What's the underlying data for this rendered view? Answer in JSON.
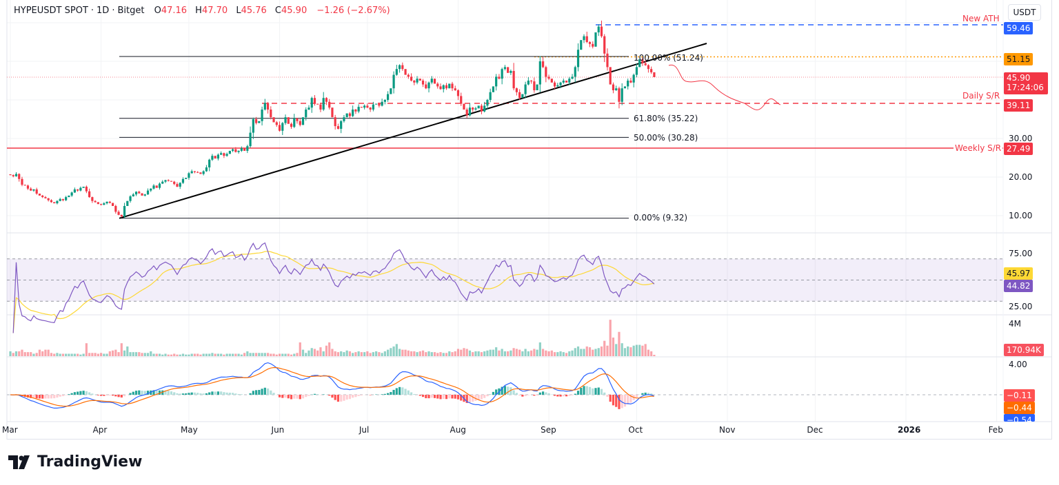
{
  "header": {
    "symbol": "HYPEUSDT SPOT",
    "sep": "·",
    "interval": "1D",
    "exchange": "Bitget",
    "o_label": "O",
    "open": "47.16",
    "h_label": "H",
    "high": "47.70",
    "l_label": "L",
    "low": "45.76",
    "c_label": "C",
    "close": "45.90",
    "change": "−1.26 (−2.67%)"
  },
  "currency": "USDT",
  "colors": {
    "up": "#089981",
    "down": "#f23645",
    "ath": "#2962ff",
    "fib100": "#ff9800",
    "rsi": "#7e57c2",
    "rsi_ma": "#fdd835",
    "macd": "#2962ff",
    "signal": "#ff6d00"
  },
  "price_axis": {
    "ticks": [
      "30.00",
      "20.00",
      "10.00"
    ],
    "labels": {
      "ath": "59.46",
      "fib100": "51.15",
      "last": "45.90",
      "countdown": "17:24:06",
      "daily_sr": "39.11",
      "weekly_sr": "27.49"
    }
  },
  "annotations": {
    "ath": "New ATH",
    "daily_sr": "Daily S/R",
    "weekly_sr": "Weekly S/R",
    "fib": [
      {
        "label": "100.00% (51.24)",
        "value": 51.24
      },
      {
        "label": "61.80% (35.22)",
        "value": 35.22
      },
      {
        "label": "50.00% (30.28)",
        "value": 30.28
      },
      {
        "label": "0.00% (9.32)",
        "value": 9.32
      }
    ]
  },
  "rsi_axis": {
    "ticks": [
      "75.00",
      "25.00"
    ],
    "ma_label": "45.97",
    "rsi_label": "44.82"
  },
  "volume_axis": {
    "tick": "4M",
    "label": "170.94K"
  },
  "macd_axis": {
    "tick": "4.00",
    "hist_label": "−0.11",
    "signal_label": "−0.44",
    "macd_label": "−0.54"
  },
  "time_axis": [
    "Mar",
    "Apr",
    "May",
    "Jun",
    "Jul",
    "Aug",
    "Sep",
    "Oct",
    "Nov",
    "Dec",
    "2026",
    "Feb"
  ],
  "brand": "TradingView",
  "chart_data": {
    "type": "candlestick",
    "start": "2025-03-01",
    "interval": "1D",
    "ylim": [
      0,
      62
    ],
    "levels": {
      "ath": 59.46,
      "fib100_marker": 51.15,
      "last": 45.9,
      "daily_sr": 39.11,
      "weekly_sr": 27.49
    },
    "close": [
      20.5,
      20.2,
      20.8,
      19.5,
      18.0,
      17.8,
      17.0,
      16.5,
      16.8,
      15.7,
      15.2,
      14.8,
      14.5,
      14.0,
      13.5,
      13.2,
      13.8,
      14.3,
      14.0,
      14.8,
      15.2,
      16.0,
      16.8,
      16.5,
      17.2,
      17.5,
      16.3,
      14.8,
      13.8,
      13.5,
      13.0,
      12.8,
      13.2,
      13.6,
      13.3,
      12.5,
      11.0,
      10.2,
      9.8,
      12.5,
      13.8,
      15.0,
      15.5,
      16.2,
      15.8,
      15.2,
      15.5,
      16.5,
      17.0,
      17.8,
      17.2,
      18.3,
      18.8,
      19.2,
      19.0,
      18.8,
      18.2,
      17.5,
      18.5,
      19.5,
      19.8,
      21.0,
      21.5,
      21.3,
      21.2,
      20.8,
      21.5,
      22.5,
      24.5,
      25.5,
      24.8,
      25.8,
      26.2,
      25.5,
      26.0,
      26.8,
      27.2,
      26.5,
      26.8,
      27.5,
      26.8,
      28.0,
      31.5,
      35.0,
      34.0,
      34.5,
      37.5,
      39.2,
      37.5,
      35.5,
      34.2,
      33.5,
      32.0,
      34.0,
      35.5,
      33.8,
      33.0,
      35.2,
      34.5,
      33.5,
      35.5,
      37.5,
      38.0,
      40.5,
      39.0,
      38.8,
      37.5,
      40.5,
      39.5,
      38.0,
      35.5,
      33.2,
      32.5,
      34.5,
      35.5,
      36.5,
      35.8,
      37.5,
      37.0,
      38.2,
      38.0,
      38.5,
      38.0,
      37.5,
      38.8,
      39.0,
      38.5,
      39.5,
      40.0,
      41.5,
      43.0,
      46.5,
      48.0,
      49.0,
      48.0,
      46.5,
      46.0,
      45.0,
      44.5,
      45.5,
      45.0,
      44.0,
      43.0,
      44.5,
      45.5,
      44.2,
      43.5,
      42.8,
      43.8,
      43.0,
      44.2,
      43.0,
      42.5,
      41.0,
      39.0,
      37.5,
      36.0,
      38.0,
      37.5,
      37.8,
      38.5,
      37.0,
      38.5,
      40.0,
      42.0,
      43.5,
      46.0,
      45.5,
      48.0,
      48.5,
      47.0,
      47.5,
      43.0,
      42.0,
      40.5,
      41.5,
      44.0,
      45.0,
      44.8,
      42.5,
      44.0,
      50.0,
      48.5,
      46.0,
      45.5,
      44.5,
      43.5,
      43.8,
      44.5,
      45.0,
      44.5,
      45.5,
      46.0,
      48.5,
      53.0,
      55.5,
      56.5,
      55.0,
      54.5,
      53.8,
      57.5,
      59.0,
      56.5,
      52.0,
      48.5,
      44.0,
      42.5,
      43.0,
      39.5,
      43.0,
      43.5,
      45.0,
      44.5,
      46.5,
      48.5,
      50.5,
      49.5,
      49.0,
      48.0,
      47.16,
      45.9
    ],
    "volume_m": [
      0.6,
      0.4,
      0.6,
      0.6,
      0.8,
      0.5,
      0.5,
      0.5,
      0.3,
      0.4,
      0.8,
      0.6,
      0.8,
      0.8,
      0.4,
      0.3,
      0.4,
      0.3,
      0.3,
      0.3,
      0.3,
      0.3,
      0.3,
      0.3,
      0.2,
      0.3,
      1.6,
      0.4,
      0.4,
      0.4,
      0.3,
      0.4,
      0.3,
      0.3,
      0.6,
      0.7,
      0.8,
      0.5,
      1.6,
      0.7,
      1.2,
      0.5,
      0.5,
      0.5,
      0.5,
      0.4,
      0.4,
      0.4,
      0.6,
      0.3,
      0.3,
      0.3,
      0.2,
      0.3,
      0.2,
      0.2,
      0.3,
      0.2,
      0.2,
      0.3,
      0.2,
      0.2,
      0.3,
      0.3,
      0.3,
      0.2,
      0.3,
      0.3,
      0.3,
      0.4,
      0.3,
      0.3,
      0.3,
      0.2,
      0.3,
      0.3,
      0.3,
      0.3,
      0.3,
      0.2,
      0.4,
      0.6,
      0.4,
      0.4,
      0.4,
      0.4,
      0.4,
      0.4,
      0.4,
      0.3,
      0.3,
      0.2,
      0.3,
      0.3,
      0.3,
      0.3,
      0.2,
      0.3,
      0.4,
      1.7,
      0.8,
      0.4,
      0.7,
      1.0,
      0.9,
      0.7,
      1.1,
      0.6,
      1.3,
      1.7,
      0.9,
      0.6,
      0.5,
      0.6,
      0.5,
      0.7,
      0.6,
      0.4,
      0.5,
      0.6,
      0.5,
      0.5,
      0.6,
      0.4,
      0.5,
      0.6,
      0.5,
      0.4,
      0.6,
      0.8,
      1.0,
      1.2,
      1.5,
      0.9,
      0.8,
      0.8,
      0.7,
      0.6,
      0.6,
      0.5,
      0.6,
      0.7,
      0.5,
      0.6,
      0.5,
      0.5,
      0.4,
      0.5,
      0.4,
      0.4,
      0.6,
      0.5,
      0.6,
      0.9,
      0.8,
      1.0,
      0.9,
      0.7,
      0.5,
      0.6,
      0.6,
      0.5,
      0.6,
      0.7,
      0.8,
      0.8,
      1.1,
      0.7,
      0.9,
      0.6,
      0.6,
      0.7,
      1.0,
      0.9,
      0.8,
      0.6,
      0.9,
      0.6,
      0.7,
      0.9,
      0.8,
      1.7,
      0.9,
      0.7,
      0.6,
      0.7,
      0.5,
      0.5,
      0.6,
      0.5,
      0.4,
      0.6,
      0.7,
      1.0,
      1.2,
      0.9,
      0.9,
      1.2,
      1.1,
      0.8,
      0.9,
      1.0,
      1.2,
      1.9,
      1.3,
      4.5,
      2.3,
      1.5,
      3.0,
      1.6,
      1.0,
      1.2,
      1.1,
      1.3,
      1.4,
      1.4,
      1.3,
      1.5,
      0.8,
      0.6,
      0.17
    ],
    "indicators": [
      "RSI 14 with MA 14",
      "Volume",
      "MACD 12 26 9"
    ]
  }
}
